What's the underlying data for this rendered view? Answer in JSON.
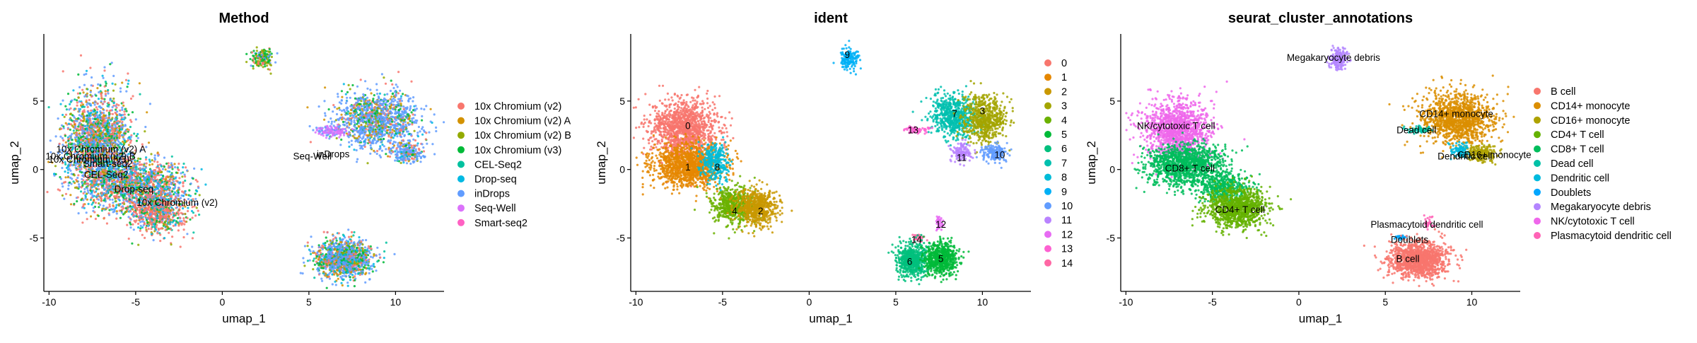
{
  "chart_data": [
    {
      "type": "scatter",
      "title": "Method",
      "xlabel": "umap_1",
      "ylabel": "umap_2",
      "xlim": [
        -10.3,
        12.8
      ],
      "ylim": [
        -8.9,
        9.9
      ],
      "xticks": [
        -10,
        -5,
        0,
        5,
        10
      ],
      "yticks": [
        -5,
        0,
        5
      ],
      "legend_position": "right",
      "grid": false,
      "legend": [
        {
          "label": "10x Chromium (v2)",
          "color": "#F8766D"
        },
        {
          "label": "10x Chromium (v2) A",
          "color": "#D39200"
        },
        {
          "label": "10x Chromium (v2) B",
          "color": "#93AA00"
        },
        {
          "label": "10x Chromium (v3)",
          "color": "#00BA38"
        },
        {
          "label": "CEL-Seq2",
          "color": "#00C19F"
        },
        {
          "label": "Drop-seq",
          "color": "#00B9E3"
        },
        {
          "label": "inDrops",
          "color": "#619CFF"
        },
        {
          "label": "Seq-Well",
          "color": "#DB72FB"
        },
        {
          "label": "Smart-seq2",
          "color": "#FF61C3"
        }
      ],
      "annotations": [
        {
          "text": "10x Chromium (v2) A",
          "x": -7.0,
          "y": 1.5
        },
        {
          "text": "10x Chromium (v2) B",
          "x": -7.6,
          "y": 1.0
        },
        {
          "text": "10x Chromium (v3)",
          "x": -7.7,
          "y": 0.75
        },
        {
          "text": "Smart-seq2",
          "x": -6.6,
          "y": 0.45
        },
        {
          "text": "CEL-Seq2",
          "x": -6.7,
          "y": -0.35
        },
        {
          "text": "Drop-seq",
          "x": -5.1,
          "y": -1.4
        },
        {
          "text": "10x Chromium (v2)",
          "x": -2.6,
          "y": -2.4
        },
        {
          "text": "inDrops",
          "x": 6.4,
          "y": 1.15
        },
        {
          "text": "Seq-Well",
          "x": 5.2,
          "y": 1.0
        }
      ],
      "clusters": [
        {
          "x": -7.2,
          "y": 1.8,
          "sx": 1.15,
          "sy": 2.2,
          "w": 5,
          "mix": [
            0.25,
            0.1,
            0.08,
            0.12,
            0.05,
            0.08,
            0.32
          ]
        },
        {
          "x": -5.0,
          "y": -1.1,
          "sx": 1.6,
          "sy": 1.1,
          "w": 3,
          "mix": [
            0.3,
            0.1,
            0.05,
            0.1,
            0.05,
            0.1,
            0.3
          ]
        },
        {
          "x": -3.7,
          "y": -2.9,
          "sx": 1.0,
          "sy": 1.0,
          "w": 2,
          "mix": [
            0.5,
            0.05,
            0.05,
            0.1,
            0.05,
            0.1,
            0.15
          ]
        },
        {
          "x": 2.3,
          "y": 8.1,
          "sx": 0.35,
          "sy": 0.45,
          "w": 0.4,
          "mix": [
            0.2,
            0.05,
            0.3,
            0.35,
            0,
            0,
            0.1
          ]
        },
        {
          "x": 9.0,
          "y": 3.6,
          "sx": 1.4,
          "sy": 1.2,
          "w": 3,
          "mix": [
            0.1,
            0.08,
            0.07,
            0.1,
            0.03,
            0.05,
            0.57
          ]
        },
        {
          "x": 10.8,
          "y": 1.2,
          "sx": 0.5,
          "sy": 0.4,
          "w": 0.5,
          "mix": [
            0.1,
            0.05,
            0.05,
            0.1,
            0,
            0.05,
            0.65
          ]
        },
        {
          "x": 6.3,
          "y": 2.8,
          "sx": 0.6,
          "sy": 0.25,
          "w": 0.3,
          "mix": [
            0,
            0,
            0,
            0,
            0,
            0,
            0.3,
            0.7
          ]
        },
        {
          "x": 7.0,
          "y": -6.5,
          "sx": 0.9,
          "sy": 0.8,
          "w": 3,
          "mix": [
            0.15,
            0.1,
            0.05,
            0.15,
            0.05,
            0.08,
            0.42
          ]
        }
      ]
    },
    {
      "type": "scatter",
      "title": "ident",
      "xlabel": "umap_1",
      "ylabel": "umap_2",
      "xlim": [
        -10.3,
        12.8
      ],
      "ylim": [
        -8.9,
        9.9
      ],
      "xticks": [
        -10,
        -5,
        0,
        5,
        10
      ],
      "yticks": [
        -5,
        0,
        5
      ],
      "legend_position": "right",
      "grid": false,
      "legend": [
        {
          "label": "0",
          "color": "#F8766D"
        },
        {
          "label": "1",
          "color": "#E58700"
        },
        {
          "label": "2",
          "color": "#C99800"
        },
        {
          "label": "3",
          "color": "#A3A500"
        },
        {
          "label": "4",
          "color": "#6BB100"
        },
        {
          "label": "5",
          "color": "#00BA38"
        },
        {
          "label": "6",
          "color": "#00BF7D"
        },
        {
          "label": "7",
          "color": "#00C0AF"
        },
        {
          "label": "8",
          "color": "#00BCD8"
        },
        {
          "label": "9",
          "color": "#00B0F6"
        },
        {
          "label": "10",
          "color": "#619CFF"
        },
        {
          "label": "11",
          "color": "#B983FF"
        },
        {
          "label": "12",
          "color": "#E76BF3"
        },
        {
          "label": "13",
          "color": "#FD61D1"
        },
        {
          "label": "14",
          "color": "#FF67A4"
        }
      ],
      "annotations": [
        {
          "text": "0",
          "x": -7.0,
          "y": 3.2
        },
        {
          "text": "1",
          "x": -7.0,
          "y": 0.2
        },
        {
          "text": "8",
          "x": -5.3,
          "y": 0.2
        },
        {
          "text": "4",
          "x": -4.3,
          "y": -3.0
        },
        {
          "text": "2",
          "x": -2.8,
          "y": -3.0
        },
        {
          "text": "9",
          "x": 2.2,
          "y": 8.4
        },
        {
          "text": "7",
          "x": 8.4,
          "y": 4.1
        },
        {
          "text": "3",
          "x": 10.0,
          "y": 4.3
        },
        {
          "text": "13",
          "x": 6.0,
          "y": 2.9
        },
        {
          "text": "11",
          "x": 8.8,
          "y": 0.9
        },
        {
          "text": "10",
          "x": 11.0,
          "y": 1.1
        },
        {
          "text": "12",
          "x": 7.6,
          "y": -4.0
        },
        {
          "text": "14",
          "x": 6.2,
          "y": -5.1
        },
        {
          "text": "6",
          "x": 5.8,
          "y": -6.7
        },
        {
          "text": "5",
          "x": 7.6,
          "y": -6.5
        }
      ],
      "clusters": [
        {
          "x": -7.2,
          "y": 3.0,
          "sx": 1.1,
          "sy": 1.25,
          "w": 3,
          "c": 0
        },
        {
          "x": -7.0,
          "y": 0.3,
          "sx": 1.2,
          "sy": 0.9,
          "w": 3,
          "c": 1
        },
        {
          "x": -5.4,
          "y": 0.6,
          "sx": 0.45,
          "sy": 0.8,
          "w": 0.7,
          "c": 8
        },
        {
          "x": -4.4,
          "y": -2.7,
          "sx": 0.7,
          "sy": 0.8,
          "w": 1.5,
          "c": 4
        },
        {
          "x": -3.0,
          "y": -2.8,
          "sx": 0.7,
          "sy": 0.8,
          "w": 1.5,
          "c": 2
        },
        {
          "x": 2.3,
          "y": 8.1,
          "sx": 0.35,
          "sy": 0.45,
          "w": 0.4,
          "c": 9
        },
        {
          "x": 8.4,
          "y": 3.9,
          "sx": 0.8,
          "sy": 0.9,
          "w": 1.5,
          "c": 7
        },
        {
          "x": 10.1,
          "y": 3.7,
          "sx": 0.7,
          "sy": 1.0,
          "w": 1.5,
          "c": 3
        },
        {
          "x": 10.7,
          "y": 1.2,
          "sx": 0.45,
          "sy": 0.35,
          "w": 0.4,
          "c": 10
        },
        {
          "x": 8.8,
          "y": 1.3,
          "sx": 0.35,
          "sy": 0.45,
          "w": 0.3,
          "c": 11
        },
        {
          "x": 6.2,
          "y": 2.9,
          "sx": 0.45,
          "sy": 0.15,
          "w": 0.15,
          "c": 13
        },
        {
          "x": 7.5,
          "y": -3.9,
          "sx": 0.15,
          "sy": 0.3,
          "w": 0.08,
          "c": 12
        },
        {
          "x": 6.3,
          "y": -5.0,
          "sx": 0.25,
          "sy": 0.2,
          "w": 0.08,
          "c": 14
        },
        {
          "x": 6.0,
          "y": -6.6,
          "sx": 0.55,
          "sy": 0.7,
          "w": 1.5,
          "c": 6
        },
        {
          "x": 7.6,
          "y": -6.5,
          "sx": 0.55,
          "sy": 0.7,
          "w": 1.5,
          "c": 5
        }
      ]
    },
    {
      "type": "scatter",
      "title": "seurat_cluster_annotations",
      "xlabel": "umap_1",
      "ylabel": "umap_2",
      "xlim": [
        -10.3,
        12.8
      ],
      "ylim": [
        -8.9,
        9.9
      ],
      "xticks": [
        -10,
        -5,
        0,
        5,
        10
      ],
      "yticks": [
        -5,
        0,
        5
      ],
      "legend_position": "right",
      "grid": false,
      "legend": [
        {
          "label": "B cell",
          "color": "#F8766D"
        },
        {
          "label": "CD14+ monocyte",
          "color": "#DB8E00"
        },
        {
          "label": "CD16+ monocyte",
          "color": "#AEA200"
        },
        {
          "label": "CD4+ T cell",
          "color": "#64B200"
        },
        {
          "label": "CD8+ T cell",
          "color": "#00BD5C"
        },
        {
          "label": "Dead cell",
          "color": "#00C1A7"
        },
        {
          "label": "Dendritic cell",
          "color": "#00BADE"
        },
        {
          "label": "Doublets",
          "color": "#00A6FF"
        },
        {
          "label": "Megakaryocyte debris",
          "color": "#B385FF"
        },
        {
          "label": "NK/cytotoxic T cell",
          "color": "#EF67EB"
        },
        {
          "label": "Plasmacytoid dendritic cell",
          "color": "#FF63B6"
        }
      ],
      "annotations": [
        {
          "text": "Megakaryocyte debris",
          "x": 2.0,
          "y": 8.2
        },
        {
          "text": "NK/cytotoxic T cell",
          "x": -7.1,
          "y": 3.2
        },
        {
          "text": "CD14+ monocyte",
          "x": 9.1,
          "y": 4.1
        },
        {
          "text": "Dead cell",
          "x": 6.8,
          "y": 2.9
        },
        {
          "text": "Dendritic cell",
          "x": 9.6,
          "y": 1.0
        },
        {
          "text": "CD16+ monocyte",
          "x": 11.3,
          "y": 1.1
        },
        {
          "text": "CD8+ T cell",
          "x": -6.3,
          "y": 0.1
        },
        {
          "text": "CD4+ T cell",
          "x": -3.4,
          "y": -2.9
        },
        {
          "text": "Plasmacytoid dendritic cell",
          "x": 7.4,
          "y": -4.0
        },
        {
          "text": "Doublets",
          "x": 6.4,
          "y": -5.1
        },
        {
          "text": "B cell",
          "x": 6.3,
          "y": -6.5
        }
      ],
      "clusters": [
        {
          "x": -7.1,
          "y": 2.9,
          "sx": 1.1,
          "sy": 1.3,
          "w": 3,
          "c": 9
        },
        {
          "x": -6.6,
          "y": 0.3,
          "sx": 1.3,
          "sy": 0.9,
          "w": 3,
          "c": 4
        },
        {
          "x": -4.3,
          "y": -1.3,
          "sx": 0.9,
          "sy": 0.6,
          "w": 1,
          "c": 4
        },
        {
          "x": -3.6,
          "y": -2.8,
          "sx": 1.0,
          "sy": 0.85,
          "w": 2.5,
          "c": 3
        },
        {
          "x": 2.3,
          "y": 8.1,
          "sx": 0.35,
          "sy": 0.45,
          "w": 0.4,
          "c": 8
        },
        {
          "x": 9.2,
          "y": 3.7,
          "sx": 1.2,
          "sy": 1.1,
          "w": 3,
          "c": 1
        },
        {
          "x": 10.6,
          "y": 1.2,
          "sx": 0.5,
          "sy": 0.35,
          "w": 0.5,
          "c": 2
        },
        {
          "x": 9.3,
          "y": 1.4,
          "sx": 0.3,
          "sy": 0.3,
          "w": 0.25,
          "c": 6
        },
        {
          "x": 7.0,
          "y": 2.9,
          "sx": 0.4,
          "sy": 0.15,
          "w": 0.15,
          "c": 5
        },
        {
          "x": 7.5,
          "y": -3.9,
          "sx": 0.15,
          "sy": 0.3,
          "w": 0.08,
          "c": 10
        },
        {
          "x": 5.9,
          "y": -4.9,
          "sx": 0.2,
          "sy": 0.15,
          "w": 0.06,
          "c": 7
        },
        {
          "x": 6.9,
          "y": -6.6,
          "sx": 1.0,
          "sy": 0.75,
          "w": 3,
          "c": 0
        }
      ]
    }
  ]
}
